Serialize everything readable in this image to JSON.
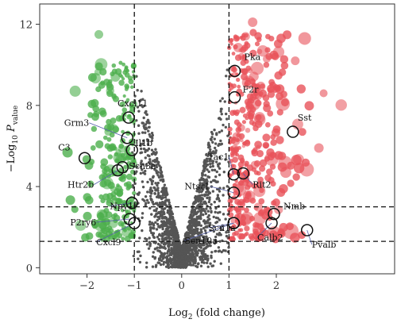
{
  "chart_data": {
    "type": "scatter",
    "title": "",
    "xlabel": "Log",
    "xlabel_sub": "2",
    "xlabel_rest": " (fold change)",
    "ylabel": "−Log",
    "ylabel_sub_main": "10",
    "ylabel_p": " P",
    "ylabel_sub_p": "value",
    "xlim": [
      -3,
      4.5
    ],
    "ylim": [
      -0.3,
      13
    ],
    "xticks": [
      -2,
      -1,
      0,
      1,
      2
    ],
    "yticks": [
      0,
      4,
      8,
      12
    ],
    "grid": false,
    "thresholds": {
      "log2fc": [
        -1,
        1
      ],
      "neg_log10_p": [
        1.3,
        3
      ]
    },
    "colors": {
      "down": "#4caf4c",
      "up": "#e8525a",
      "ns": "#555555",
      "label_edge": "#111111"
    },
    "labeled_genes": [
      {
        "name": "Pka",
        "x": 1.12,
        "y": 9.7
      },
      {
        "name": "F2r",
        "x": 1.12,
        "y": 8.4
      },
      {
        "name": "Cxcl11",
        "x": -1.12,
        "y": 7.4
      },
      {
        "name": "Grm3",
        "x": -1.15,
        "y": 6.4
      },
      {
        "name": "Il1b",
        "x": -1.05,
        "y": 5.8
      },
      {
        "name": "Sst",
        "x": 2.35,
        "y": 6.7
      },
      {
        "name": "C3",
        "x": -2.05,
        "y": 5.4
      },
      {
        "name": "Tac1",
        "x": 1.1,
        "y": 4.6
      },
      {
        "name": "Scn3a",
        "x": -1.25,
        "y": 4.95
      },
      {
        "name": "Htr2b",
        "x": -1.35,
        "y": 4.8
      },
      {
        "name": "Rit2",
        "x": 1.3,
        "y": 4.65
      },
      {
        "name": "Ntsr1",
        "x": 1.1,
        "y": 3.7
      },
      {
        "name": "Npy1r",
        "x": -1.05,
        "y": 3.2
      },
      {
        "name": "P2ry6",
        "x": -1.1,
        "y": 2.4
      },
      {
        "name": "Scn1a",
        "x": 1.1,
        "y": 2.2
      },
      {
        "name": "Nmb",
        "x": 1.95,
        "y": 2.65
      },
      {
        "name": "Cxcl9",
        "x": -1.0,
        "y": 2.2
      },
      {
        "name": "Scn10a",
        "x": 1.1,
        "y": 2.2
      },
      {
        "name": "Calb2",
        "x": 1.9,
        "y": 2.2
      },
      {
        "name": "Pvalb",
        "x": 2.65,
        "y": 1.85
      }
    ]
  }
}
